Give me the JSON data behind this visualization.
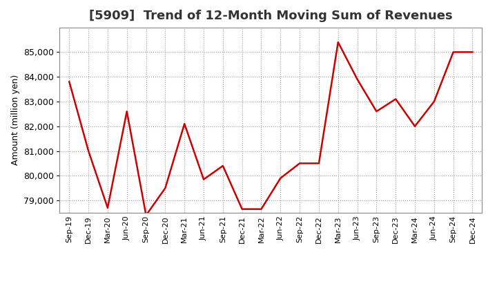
{
  "title": "[5909]  Trend of 12-Month Moving Sum of Revenues",
  "ylabel": "Amount (million yen)",
  "background_color": "#ffffff",
  "grid_color": "#999999",
  "line_color": "#cc0000",
  "labels": [
    "Sep-19",
    "Dec-19",
    "Mar-20",
    "Jun-20",
    "Sep-20",
    "Dec-20",
    "Mar-21",
    "Jun-21",
    "Sep-21",
    "Dec-21",
    "Mar-22",
    "Jun-22",
    "Sep-22",
    "Dec-22",
    "Mar-23",
    "Jun-23",
    "Sep-23",
    "Dec-23",
    "Mar-24",
    "Jun-24",
    "Sep-24",
    "Dec-24"
  ],
  "values": [
    83800,
    81000,
    78700,
    82600,
    78400,
    79500,
    82100,
    79850,
    80400,
    78650,
    78650,
    79900,
    80500,
    80500,
    85400,
    83900,
    82600,
    83100,
    82000,
    83000,
    85000,
    85000
  ],
  "ylim_min": 78500,
  "ylim_max": 86000,
  "yticks": [
    79000,
    80000,
    81000,
    82000,
    83000,
    84000,
    85000
  ],
  "title_fontsize": 13,
  "ylabel_fontsize": 9,
  "tick_fontsize": 9,
  "xtick_fontsize": 8
}
